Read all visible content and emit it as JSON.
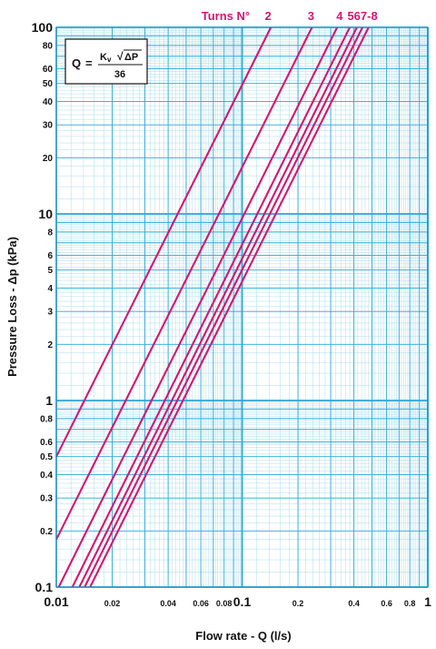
{
  "chart_data": {
    "type": "line",
    "x_scale": "log",
    "y_scale": "log",
    "xlim": [
      0.01,
      1
    ],
    "ylim": [
      0.1,
      100
    ],
    "xlabel": "Flow rate - Q (l/s)",
    "ylabel": "Pressure Loss - Δp (kPa)",
    "x_tick_labels": [
      {
        "value": 0.01,
        "label": "0.01",
        "major": true
      },
      {
        "value": 0.02,
        "label": "0.02",
        "major": false
      },
      {
        "value": 0.04,
        "label": "0.04",
        "major": false
      },
      {
        "value": 0.06,
        "label": "0.06",
        "major": false
      },
      {
        "value": 0.08,
        "label": "0.08",
        "major": false
      },
      {
        "value": 0.1,
        "label": "0.1",
        "major": true
      },
      {
        "value": 0.2,
        "label": "0.2",
        "major": false
      },
      {
        "value": 0.4,
        "label": "0.4",
        "major": false
      },
      {
        "value": 0.6,
        "label": "0.6",
        "major": false
      },
      {
        "value": 0.8,
        "label": "0.8",
        "major": false
      },
      {
        "value": 1,
        "label": "1",
        "major": true
      }
    ],
    "y_tick_labels": [
      {
        "value": 100,
        "label": "100",
        "major": true
      },
      {
        "value": 80,
        "label": "80",
        "major": false
      },
      {
        "value": 60,
        "label": "60",
        "major": false
      },
      {
        "value": 50,
        "label": "50",
        "major": false
      },
      {
        "value": 40,
        "label": "40",
        "major": false
      },
      {
        "value": 30,
        "label": "30",
        "major": false
      },
      {
        "value": 20,
        "label": "20",
        "major": false
      },
      {
        "value": 10,
        "label": "10",
        "major": true
      },
      {
        "value": 8,
        "label": "8",
        "major": false
      },
      {
        "value": 6,
        "label": "6",
        "major": false
      },
      {
        "value": 5,
        "label": "5",
        "major": false
      },
      {
        "value": 4,
        "label": "4",
        "major": false
      },
      {
        "value": 3,
        "label": "3",
        "major": false
      },
      {
        "value": 2,
        "label": "2",
        "major": false
      },
      {
        "value": 1,
        "label": "1",
        "major": true
      },
      {
        "value": 0.8,
        "label": "0.8",
        "major": false
      },
      {
        "value": 0.6,
        "label": "0.6",
        "major": false
      },
      {
        "value": 0.5,
        "label": "0.5",
        "major": false
      },
      {
        "value": 0.4,
        "label": "0.4",
        "major": false
      },
      {
        "value": 0.3,
        "label": "0.3",
        "major": false
      },
      {
        "value": 0.2,
        "label": "0.2",
        "major": false
      },
      {
        "value": 0.1,
        "label": "0.1",
        "major": true
      }
    ],
    "grid": true,
    "turns_title": "Turns N°",
    "turn_labels": [
      {
        "text": "2",
        "x": 0.138
      },
      {
        "text": "3",
        "x": 0.235
      },
      {
        "text": "4",
        "x": 0.335
      },
      {
        "text": "567-8",
        "x": 0.445
      }
    ],
    "series": [
      {
        "name": "2",
        "x": [
          0.01,
          0.143
        ],
        "y": [
          0.5,
          100
        ]
      },
      {
        "name": "3",
        "x": [
          0.01,
          0.238
        ],
        "y": [
          0.18,
          100
        ]
      },
      {
        "name": "4",
        "x": [
          0.0103,
          0.325
        ],
        "y": [
          0.1,
          100
        ]
      },
      {
        "name": "5",
        "x": [
          0.0122,
          0.38
        ],
        "y": [
          0.1,
          100
        ]
      },
      {
        "name": "6",
        "x": [
          0.0133,
          0.415
        ],
        "y": [
          0.1,
          100
        ]
      },
      {
        "name": "7",
        "x": [
          0.0142,
          0.445
        ],
        "y": [
          0.1,
          100
        ]
      },
      {
        "name": "8",
        "x": [
          0.0152,
          0.48
        ],
        "y": [
          0.1,
          100
        ]
      }
    ],
    "line_color": "#d41670",
    "grid_color": "#29a8d8",
    "minor_grid_color": "#a8dcef",
    "formula": {
      "lhs": "Q",
      "equals": "=",
      "numerator_kv": "K",
      "numerator_sub": "v",
      "numerator_sqrt": "√",
      "numerator_dp": "ΔP",
      "denominator": "36"
    }
  }
}
